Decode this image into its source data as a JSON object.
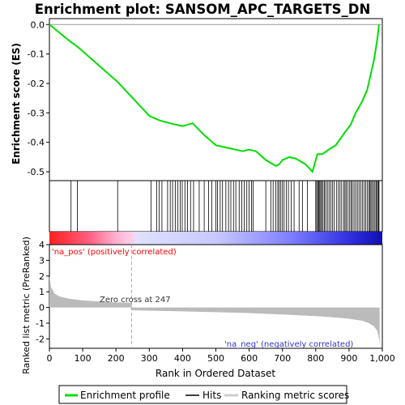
{
  "chart_data": [
    {
      "type": "line",
      "title": "Enrichment plot: SANSOM_APC_TARGETS_DN",
      "ylabel": "Enrichment score (ES)",
      "ylim": [
        -0.53,
        0.02
      ],
      "xlim": [
        0,
        1000
      ],
      "yticks": [
        0.0,
        -0.1,
        -0.2,
        -0.3,
        -0.4,
        -0.5
      ],
      "ytick_labels": [
        "0.0",
        "-0.1",
        "-0.2",
        "-0.3",
        "-0.4",
        "-0.5"
      ],
      "series": [
        {
          "name": "Enrichment profile",
          "color": "#00dd00",
          "x": [
            0,
            65,
            84,
            205,
            300,
            330,
            345,
            380,
            400,
            430,
            460,
            500,
            540,
            560,
            580,
            600,
            620,
            650,
            680,
            690,
            700,
            720,
            740,
            770,
            790,
            805,
            820,
            845,
            860,
            885,
            905,
            920,
            940,
            955,
            965,
            975,
            985,
            990
          ],
          "y": [
            0.0,
            -0.06,
            -0.075,
            -0.195,
            -0.31,
            -0.325,
            -0.33,
            -0.34,
            -0.345,
            -0.335,
            -0.37,
            -0.41,
            -0.42,
            -0.425,
            -0.43,
            -0.425,
            -0.43,
            -0.46,
            -0.48,
            -0.475,
            -0.46,
            -0.45,
            -0.455,
            -0.475,
            -0.5,
            -0.44,
            -0.44,
            -0.42,
            -0.41,
            -0.37,
            -0.34,
            -0.3,
            -0.26,
            -0.22,
            -0.17,
            -0.12,
            -0.05,
            0.0
          ]
        }
      ],
      "hits": [
        65,
        84,
        205,
        305,
        322,
        330,
        338,
        355,
        363,
        370,
        378,
        386,
        393,
        399,
        407,
        415,
        424,
        433,
        450,
        465,
        478,
        488,
        500,
        505,
        513,
        520,
        530,
        538,
        545,
        553,
        560,
        570,
        578,
        585,
        593,
        600,
        607,
        612,
        650,
        665,
        672,
        680,
        686,
        690,
        695,
        700,
        705,
        712,
        718,
        726,
        735,
        750,
        760,
        775,
        800,
        803,
        806,
        809,
        812,
        815,
        818,
        822,
        826,
        830,
        835,
        840,
        845,
        850,
        855,
        862,
        868,
        873,
        878,
        884,
        888,
        892,
        897,
        902,
        906,
        910,
        915,
        920,
        925,
        930,
        935,
        940,
        945,
        950,
        955,
        960,
        963,
        966,
        970,
        974,
        978,
        982,
        985,
        988,
        990
      ],
      "legend": "bottom"
    },
    {
      "type": "area",
      "ylabel": "Ranked list metric (PreRanked)",
      "xlabel": "Rank in Ordered Dataset",
      "xlim": [
        0,
        1000
      ],
      "ylim": [
        -2.6,
        4.0
      ],
      "xticks": [
        0,
        100,
        200,
        300,
        400,
        500,
        600,
        700,
        800,
        900,
        1000
      ],
      "xtick_labels": [
        "0",
        "100",
        "200",
        "300",
        "400",
        "500",
        "600",
        "700",
        "800",
        "900",
        "1,000"
      ],
      "yticks": [
        4,
        3,
        2,
        1,
        0,
        -1,
        -2
      ],
      "ytick_labels": [
        "4",
        "3",
        "2",
        "1",
        "0",
        "-1",
        "-2"
      ],
      "zero_cross": 247,
      "metric_x": [
        0,
        5,
        15,
        30,
        60,
        100,
        150,
        200,
        247,
        248,
        300,
        400,
        500,
        600,
        700,
        800,
        850,
        900,
        940,
        960,
        975,
        985,
        990,
        992
      ],
      "metric_y": [
        2.0,
        1.3,
        0.9,
        0.7,
        0.55,
        0.45,
        0.38,
        0.32,
        0.3,
        -0.18,
        -0.2,
        -0.25,
        -0.3,
        -0.36,
        -0.45,
        -0.55,
        -0.62,
        -0.72,
        -0.85,
        -1.0,
        -1.2,
        -1.5,
        -2.0,
        -2.4
      ],
      "color": "#bbbbbb",
      "annotations": [
        "Zero cross at 247",
        "'na_pos' (positively correlated)",
        "'na_neg' (negatively correlated)"
      ],
      "annotation_colors": [
        "#333333",
        "#ff0000",
        "#3333cc"
      ]
    }
  ],
  "legend": {
    "items": [
      "Enrichment profile",
      "Hits",
      "Ranking metric scores"
    ],
    "colors": [
      "#00dd00",
      "#000000",
      "#cccccc"
    ]
  }
}
